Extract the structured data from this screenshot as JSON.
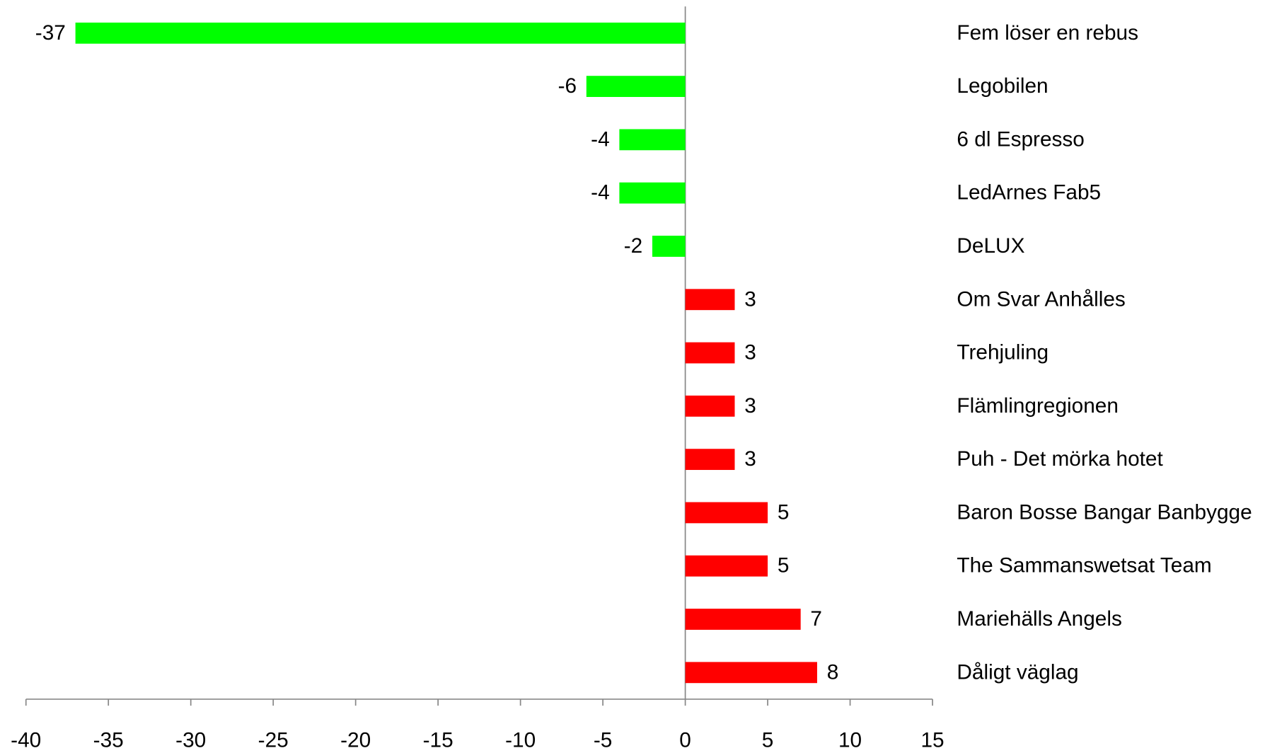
{
  "chart_data": {
    "type": "hbar",
    "categories": [
      "Fem löser en rebus",
      "Legobilen",
      "6 dl Espresso",
      "LedArnes Fab5",
      "DeLUX",
      "Om Svar Anhålles",
      "Trehjuling",
      "Flämlingregionen",
      "Puh - Det mörka hotet",
      "Baron Bosse Bangar Banbygge",
      "The Sammanswetsat Team",
      "Mariehälls Angels",
      "Dåligt väglag"
    ],
    "values": [
      -37,
      -6,
      -4,
      -4,
      -2,
      3,
      3,
      3,
      3,
      5,
      5,
      7,
      8
    ],
    "colors": [
      "#00ff00",
      "#00ff00",
      "#00ff00",
      "#00ff00",
      "#00ff00",
      "#ff0000",
      "#ff0000",
      "#ff0000",
      "#ff0000",
      "#ff0000",
      "#ff0000",
      "#ff0000",
      "#ff0000"
    ],
    "xlim": [
      -40,
      15
    ],
    "xticks": [
      -40,
      -35,
      -30,
      -25,
      -20,
      -15,
      -10,
      -5,
      0,
      5,
      10,
      15
    ]
  }
}
